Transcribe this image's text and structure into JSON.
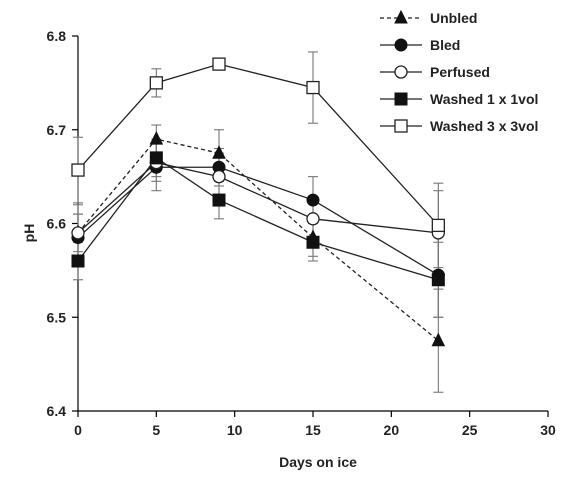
{
  "chart_data": {
    "type": "line",
    "xlabel": "Days on ice",
    "ylabel": "pH",
    "xlim": [
      0,
      30
    ],
    "ylim": [
      6.4,
      6.8
    ],
    "xticks": [
      0,
      5,
      10,
      15,
      20,
      25,
      30
    ],
    "yticks": [
      6.4,
      6.5,
      6.6,
      6.7,
      6.8
    ],
    "x": [
      0,
      5,
      9,
      15,
      23
    ],
    "legend_position": "top-right",
    "series": [
      {
        "name": "Unbled",
        "marker": "filled-triangle",
        "line": "dashed",
        "values": [
          6.59,
          6.69,
          6.675,
          6.585,
          6.475
        ],
        "errors": [
          0.03,
          0.015,
          0.025,
          0.02,
          0.055
        ]
      },
      {
        "name": "Bled",
        "marker": "filled-circle",
        "line": "solid",
        "values": [
          6.585,
          6.66,
          6.66,
          6.625,
          6.545
        ],
        "errors": [
          0.025,
          0.025,
          0.02,
          0.025,
          0.045
        ]
      },
      {
        "name": "Perfused",
        "marker": "open-circle",
        "line": "solid",
        "values": [
          6.59,
          6.665,
          6.65,
          6.605,
          6.59
        ],
        "errors": [
          0.02,
          0.02,
          0.025,
          0.02,
          0.045
        ]
      },
      {
        "name": "Washed 1 x 1vol",
        "marker": "filled-square",
        "line": "solid",
        "values": [
          6.56,
          6.67,
          6.625,
          6.58,
          6.54
        ],
        "errors": [
          0.02,
          0.02,
          0.02,
          0.02,
          0.04
        ]
      },
      {
        "name": "Washed 3 x 3vol",
        "marker": "open-square",
        "line": "solid",
        "values": [
          6.657,
          6.75,
          6.77,
          6.745,
          6.598
        ],
        "errors": [
          0.035,
          0.015,
          0.0,
          0.038,
          0.045
        ]
      }
    ]
  }
}
